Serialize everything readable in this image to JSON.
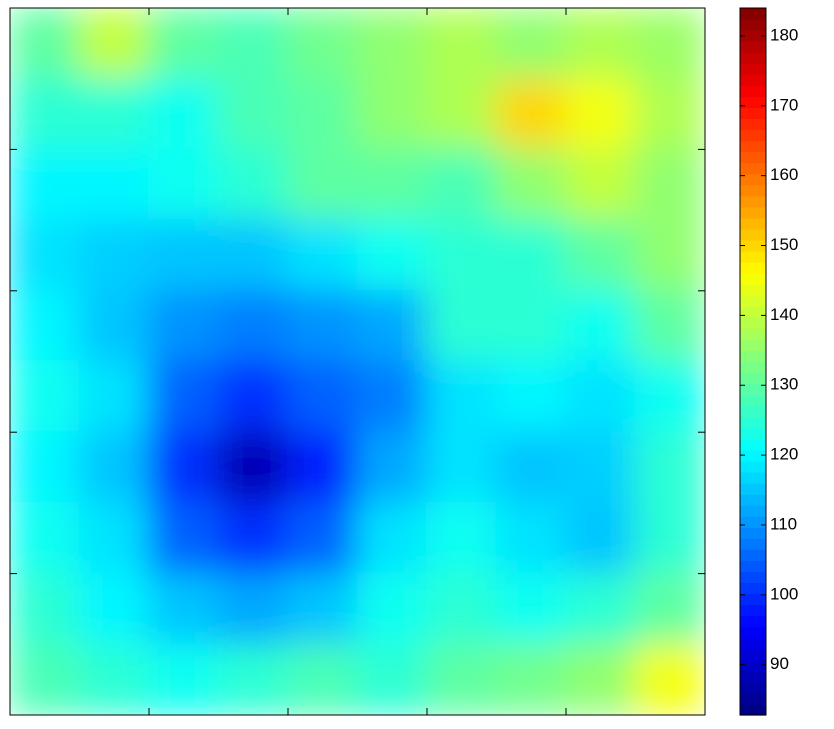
{
  "chart_data": {
    "type": "heatmap",
    "xlim": [
      0,
      10
    ],
    "ylim": [
      0,
      10
    ],
    "xticks": [
      2,
      4,
      6,
      8
    ],
    "yticks": [
      2,
      4,
      6,
      8
    ],
    "colormap": "jet",
    "clim": [
      82.8,
      184
    ],
    "cticks": [
      90,
      100,
      110,
      120,
      130,
      140,
      150,
      160,
      170,
      180
    ],
    "values": [
      [
        130,
        140,
        130,
        128,
        132,
        135,
        138,
        135,
        138,
        136
      ],
      [
        125,
        125,
        122,
        128,
        130,
        135,
        138,
        150,
        145,
        138
      ],
      [
        120,
        120,
        122,
        125,
        130,
        130,
        128,
        135,
        140,
        135
      ],
      [
        118,
        116,
        115,
        115,
        118,
        122,
        125,
        125,
        130,
        135
      ],
      [
        120,
        115,
        110,
        108,
        110,
        112,
        125,
        125,
        122,
        130
      ],
      [
        122,
        118,
        105,
        100,
        105,
        108,
        118,
        120,
        118,
        122
      ],
      [
        120,
        115,
        100,
        88,
        98,
        112,
        118,
        115,
        116,
        125
      ],
      [
        122,
        118,
        105,
        100,
        105,
        118,
        122,
        118,
        115,
        125
      ],
      [
        125,
        120,
        115,
        112,
        115,
        122,
        125,
        122,
        125,
        130
      ],
      [
        128,
        125,
        122,
        125,
        128,
        125,
        130,
        132,
        135,
        145
      ]
    ]
  }
}
